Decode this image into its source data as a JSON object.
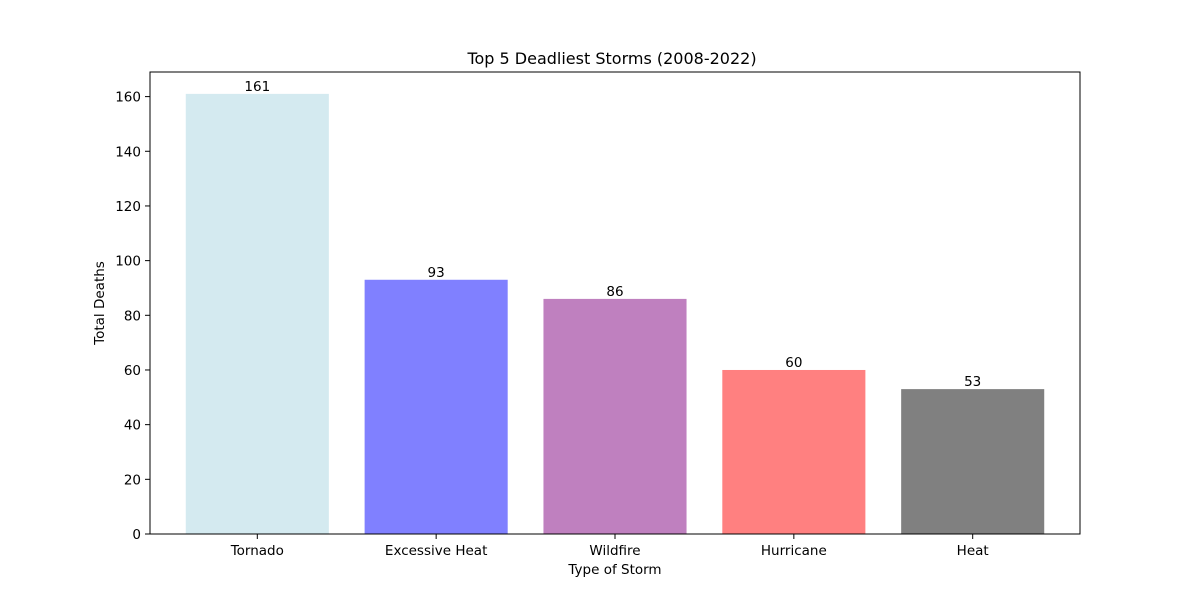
{
  "chart_data": {
    "type": "bar",
    "title": "Top 5 Deadliest Storms (2008-2022)",
    "xlabel": "Type of Storm",
    "ylabel": "Total Deaths",
    "categories": [
      "Tornado",
      "Excessive Heat",
      "Wildfire",
      "Hurricane",
      "Heat"
    ],
    "values": [
      161,
      93,
      86,
      60,
      53
    ],
    "colors": [
      "#d4eaf0",
      "#8080ff",
      "#bf80bf",
      "#ff8080",
      "#808080"
    ],
    "ylim": [
      0,
      169
    ],
    "yticks": [
      0,
      20,
      40,
      60,
      80,
      100,
      120,
      140,
      160
    ],
    "grid": false,
    "data_labels": true
  }
}
